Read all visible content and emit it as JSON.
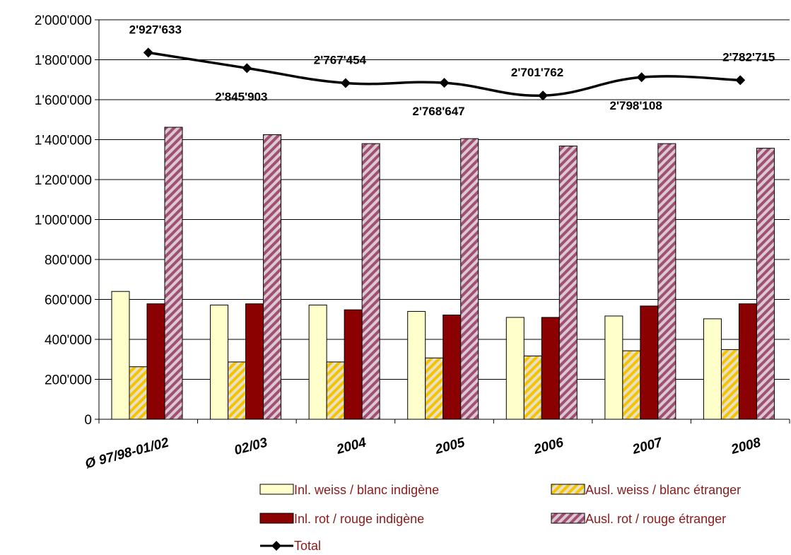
{
  "chart_data": {
    "type": "bar",
    "categories": [
      "Ø 97/98-01/02",
      "02/03",
      "2004",
      "2005",
      "2006",
      "2007",
      "2008"
    ],
    "ylim": [
      0,
      2000000
    ],
    "yticks": [
      "0",
      "200'000",
      "400'000",
      "600'000",
      "800'000",
      "1'000'000",
      "1'200'000",
      "1'400'000",
      "1'600'000",
      "1'800'000",
      "2'000'000"
    ],
    "grid": true,
    "legend_position": "bottom",
    "series": [
      {
        "name": "Inl. weiss / blanc indigène",
        "values": [
          640000,
          572000,
          572000,
          540000,
          510000,
          517000,
          503000
        ],
        "color": "#ffffcc",
        "pattern": "solid"
      },
      {
        "name": "Ausl. weiss / blanc étranger",
        "values": [
          263000,
          287000,
          287000,
          307000,
          317000,
          343000,
          349000
        ],
        "color": "#f4c400",
        "pattern": "hatch"
      },
      {
        "name": "Inl. rot / rouge indigène",
        "values": [
          578000,
          578000,
          548000,
          522000,
          510000,
          567000,
          578000
        ],
        "color": "#8b0000",
        "pattern": "solid"
      },
      {
        "name": "Ausl. rot / rouge étranger",
        "values": [
          1462000,
          1425000,
          1380000,
          1405000,
          1368000,
          1380000,
          1357000
        ],
        "color": "#a05070",
        "pattern": "hatch"
      }
    ],
    "total": {
      "name": "Total",
      "values": [
        2927633,
        2845903,
        2767454,
        2768647,
        2701762,
        2798108,
        2782715
      ],
      "labels": [
        "2'927'633",
        "2'845'903",
        "2'767'454",
        "2'768'647",
        "2'701'762",
        "2'798'108",
        "2'782'715"
      ],
      "label_positions": [
        "above",
        "below",
        "above",
        "below",
        "above",
        "below",
        "above"
      ]
    }
  }
}
